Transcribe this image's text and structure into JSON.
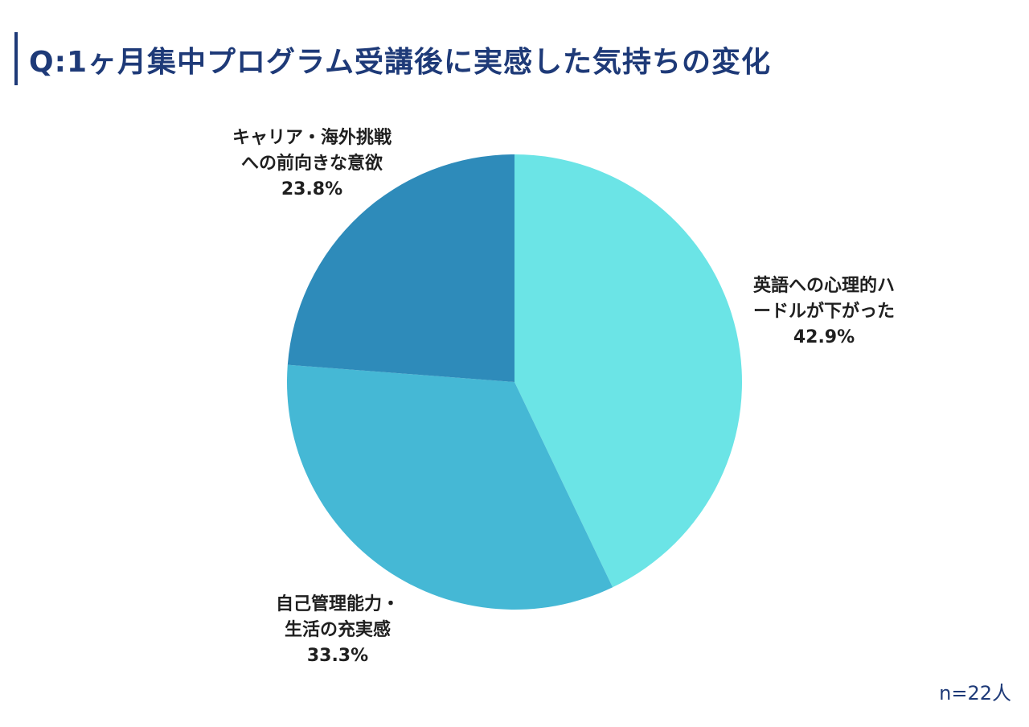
{
  "title": "Q:1ヶ月集中プログラム受講後に実感した気持ちの変化",
  "sample_size": "n=22人",
  "chart_data": {
    "type": "pie",
    "start_angle_deg": 0,
    "direction": "clockwise",
    "slices": [
      {
        "lines": [
          "英語への心理的ハ",
          "ードルが下がった"
        ],
        "value": 42.9,
        "value_label": "42.9%",
        "color": "#6be4e6"
      },
      {
        "lines": [
          "自己管理能力・",
          "生活の充実感"
        ],
        "value": 33.3,
        "value_label": "33.3%",
        "color": "#45b8d5"
      },
      {
        "lines": [
          "キャリア・海外挑戦",
          "への前向きな意欲"
        ],
        "value": 23.8,
        "value_label": "23.8%",
        "color": "#2e8bba"
      }
    ]
  }
}
